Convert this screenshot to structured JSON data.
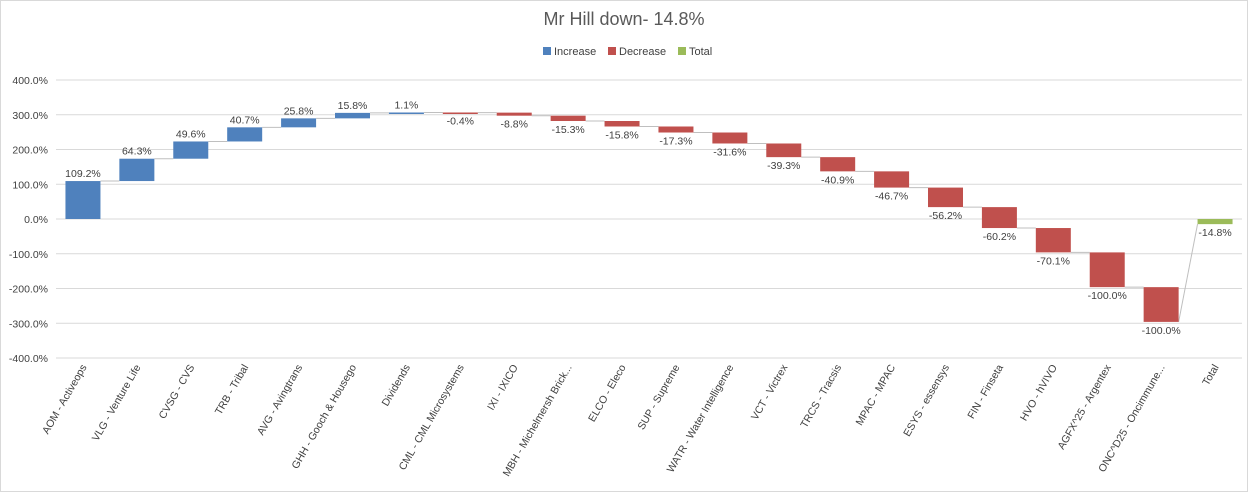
{
  "chart_data": {
    "type": "waterfall",
    "title": "Mr Hill down- 14.8%",
    "legend": [
      {
        "name": "Increase",
        "color": "#4F81BD"
      },
      {
        "name": "Decrease",
        "color": "#C0504D"
      },
      {
        "name": "Total",
        "color": "#9BBB59"
      }
    ],
    "legend_position": "top",
    "ylim": [
      -400,
      400
    ],
    "yticks": [
      400,
      300,
      200,
      100,
      0,
      -100,
      -200,
      -300,
      -400
    ],
    "ytick_labels": [
      "400.0%",
      "300.0%",
      "200.0%",
      "100.0%",
      "0.0%",
      "-100.0%",
      "-200.0%",
      "-300.0%",
      "-400.0%"
    ],
    "categories": [
      "AOM - Activeops",
      "VLG - Venture Life",
      "CVSG - CVS",
      "TRB - Tribal",
      "AVG - Avingtrans",
      "GHH - Gooch & Housego",
      "Dividends",
      "CML - CML Microsystems",
      "IXI - IXICO",
      "MBH - Michelmersh Brick...",
      "ELCO - Eleco",
      "SUP - Supreme",
      "WATR - Water Intelligence",
      "VCT - Victrex",
      "TRCS - Tracsis",
      "MPAC - MPAC",
      "ESYS - essensys",
      "FIN - Finseta",
      "HVO - hVIVO",
      "AGFX^25 - Argentex",
      "ONC^D25 - Oncimmune...",
      "Total"
    ],
    "values": [
      109.2,
      64.3,
      49.6,
      40.7,
      25.8,
      15.8,
      1.1,
      -0.4,
      -8.8,
      -15.3,
      -15.8,
      -17.3,
      -31.6,
      -39.3,
      -40.9,
      -46.7,
      -56.2,
      -60.2,
      -70.1,
      -100.0,
      -100.0,
      -14.8
    ],
    "labels": [
      "109.2%",
      "64.3%",
      "49.6%",
      "40.7%",
      "25.8%",
      "15.8%",
      "1.1%",
      "-0.4%",
      "-8.8%",
      "-15.3%",
      "-15.8%",
      "-17.3%",
      "-31.6%",
      "-39.3%",
      "-40.9%",
      "-46.7%",
      "-56.2%",
      "-60.2%",
      "-70.1%",
      "-100.0%",
      "-100.0%",
      "-14.8%"
    ],
    "total_index": 21,
    "gridlines": true
  }
}
